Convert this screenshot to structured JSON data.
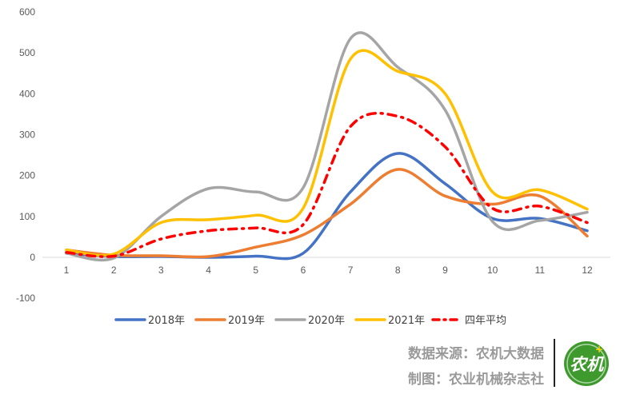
{
  "chart_data": {
    "type": "line",
    "title": "",
    "xlabel": "",
    "ylabel": "",
    "categories": [
      "1",
      "2",
      "3",
      "4",
      "5",
      "6",
      "7",
      "8",
      "9",
      "10",
      "11",
      "12"
    ],
    "ylim": [
      -100,
      600
    ],
    "yticks": [
      600,
      500,
      400,
      300,
      200,
      100,
      0,
      -100
    ],
    "grid": false,
    "legend_position": "bottom",
    "series": [
      {
        "name": "2018年",
        "color": "#4472C4",
        "dash": "solid",
        "values": [
          10,
          2,
          2,
          0,
          3,
          10,
          160,
          254,
          180,
          95,
          95,
          65
        ]
      },
      {
        "name": "2019年",
        "color": "#ED7D31",
        "dash": "solid",
        "values": [
          18,
          5,
          4,
          2,
          25,
          55,
          130,
          215,
          150,
          130,
          150,
          52
        ]
      },
      {
        "name": "2020年",
        "color": "#A5A5A5",
        "dash": "solid",
        "values": [
          10,
          -2,
          100,
          168,
          160,
          170,
          535,
          465,
          360,
          88,
          90,
          110
        ]
      },
      {
        "name": "2021年",
        "color": "#FFC000",
        "dash": "solid",
        "values": [
          18,
          8,
          85,
          92,
          103,
          120,
          485,
          455,
          400,
          160,
          165,
          118
        ]
      },
      {
        "name": "四年平均",
        "color": "#FF0000",
        "dash": "dashdot",
        "values": [
          12,
          3,
          45,
          65,
          72,
          80,
          320,
          345,
          270,
          120,
          125,
          85
        ]
      }
    ]
  },
  "footer": {
    "source": "数据来源：农机大数据",
    "maker": "制图：农业机械杂志社",
    "logo_text": "农机"
  }
}
